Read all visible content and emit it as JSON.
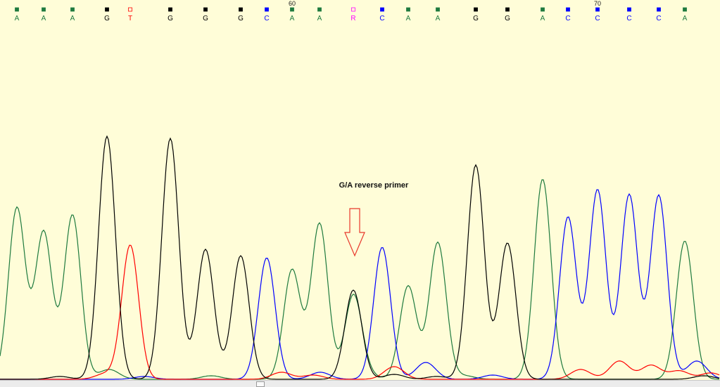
{
  "colors": {
    "A": "#1e7a3e",
    "C": "#0000ff",
    "G": "#000000",
    "T": "#ff0000",
    "R": "#ff00ff",
    "bg": "#fffdd8"
  },
  "position_labels": [
    "60",
    "70"
  ],
  "annotation": {
    "text": "G/A reverse primer"
  },
  "chart_data": {
    "type": "line",
    "title": "",
    "xlabel": "",
    "ylabel": "",
    "calls": [
      "A",
      "A",
      "A",
      "G",
      "T",
      "G",
      "G",
      "G",
      "C",
      "A",
      "A",
      "R",
      "C",
      "A",
      "A",
      "G",
      "G",
      "A",
      "C",
      "C",
      "C",
      "C",
      "A"
    ],
    "ruler": [
      {
        "label": "60",
        "base_index": 9
      },
      {
        "label": "70",
        "base_index": 19
      }
    ],
    "peak_heights": {
      "A": [
        244,
        210,
        234,
        0,
        0,
        0,
        0,
        0,
        0,
        156,
        222,
        118,
        0,
        133,
        195,
        0,
        0,
        285,
        0,
        0,
        0,
        0,
        197
      ],
      "C": [
        0,
        0,
        0,
        0,
        0,
        0,
        0,
        0,
        173,
        0,
        0,
        0,
        188,
        0,
        0,
        0,
        0,
        0,
        231,
        270,
        263,
        262,
        0
      ],
      "G": [
        0,
        0,
        0,
        346,
        0,
        343,
        185,
        176,
        0,
        0,
        0,
        127,
        0,
        0,
        0,
        305,
        194,
        0,
        0,
        0,
        0,
        0,
        0
      ],
      "T": [
        0,
        0,
        0,
        0,
        191,
        0,
        0,
        0,
        0,
        0,
        0,
        0,
        0,
        0,
        0,
        0,
        0,
        0,
        0,
        0,
        0,
        0,
        0
      ]
    }
  }
}
